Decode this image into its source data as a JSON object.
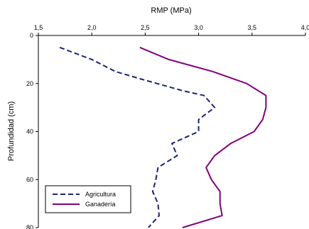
{
  "chart_data": {
    "type": "line",
    "title": "",
    "xlabel": "RMP (MPa)",
    "ylabel": "Profundidad (cm)",
    "xlim": [
      1.5,
      4.0
    ],
    "ylim": [
      0,
      80
    ],
    "y_inverted": true,
    "x_axis_position": "top",
    "x_ticks": [
      "1,5",
      "2,0",
      "2,5",
      "3,0",
      "3,5",
      "4,0"
    ],
    "y_ticks": [
      "0",
      "20",
      "40",
      "60",
      "80"
    ],
    "grid": false,
    "legend_position": "bottom-left",
    "series": [
      {
        "name": "Agricultura",
        "color": "#1a237e",
        "line_style": "dashed",
        "points": [
          [
            1.7,
            5
          ],
          [
            2.0,
            10
          ],
          [
            2.22,
            15
          ],
          [
            2.45,
            18
          ],
          [
            2.85,
            23
          ],
          [
            3.05,
            25
          ],
          [
            3.15,
            30
          ],
          [
            3.0,
            35
          ],
          [
            3.0,
            40
          ],
          [
            2.75,
            45
          ],
          [
            2.8,
            50
          ],
          [
            2.62,
            55
          ],
          [
            2.6,
            60
          ],
          [
            2.57,
            65
          ],
          [
            2.62,
            70
          ],
          [
            2.63,
            75
          ],
          [
            2.53,
            80
          ]
        ]
      },
      {
        "name": "Ganadería",
        "color": "#800080",
        "line_style": "solid",
        "points": [
          [
            2.45,
            5
          ],
          [
            2.72,
            10
          ],
          [
            3.13,
            15
          ],
          [
            3.45,
            20
          ],
          [
            3.63,
            25
          ],
          [
            3.63,
            30
          ],
          [
            3.6,
            35
          ],
          [
            3.52,
            40
          ],
          [
            3.3,
            45
          ],
          [
            3.15,
            50
          ],
          [
            3.07,
            55
          ],
          [
            3.12,
            60
          ],
          [
            3.2,
            65
          ],
          [
            3.2,
            70
          ],
          [
            3.22,
            75
          ],
          [
            2.85,
            80
          ]
        ]
      }
    ]
  }
}
